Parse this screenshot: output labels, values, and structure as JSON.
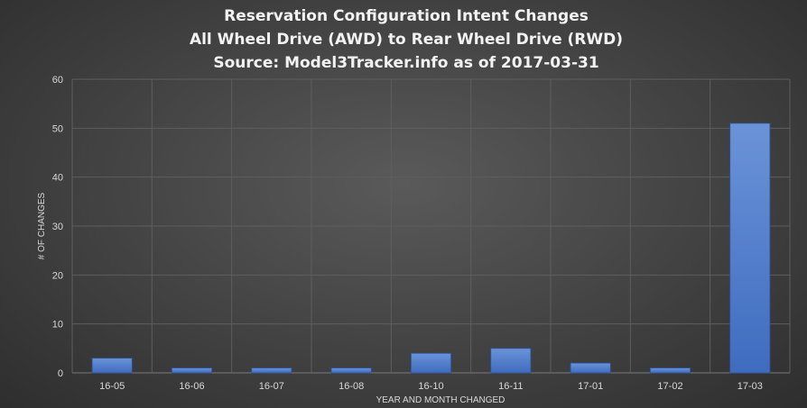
{
  "chart_data": {
    "type": "bar",
    "title": [
      "Reservation  Configuration  Intent  Changes",
      "All Wheel Drive (AWD) to Rear Wheel Drive (RWD)",
      "Source:  Model3Tracker.info    as of 2017-03-31"
    ],
    "categories": [
      "16-05",
      "16-06",
      "16-07",
      "16-08",
      "16-10",
      "16-11",
      "17-01",
      "17-02",
      "17-03"
    ],
    "values": [
      3,
      1,
      1,
      1,
      4,
      5,
      2,
      1,
      51
    ],
    "xlabel": "YEAR AND MONTH CHANGED",
    "ylabel": "# OF CHANGES",
    "ylim": [
      0,
      60
    ],
    "yticks": [
      0,
      10,
      20,
      30,
      40,
      50,
      60
    ],
    "grid": true,
    "legend": "none",
    "colors": {
      "bar_top": "#6a93d8",
      "bar_bottom": "#3f6cc0",
      "bar_stroke": "#2d55a0",
      "grid": "#5e5e5e",
      "text": "#d9d9d9",
      "title": "#f2f2f2"
    }
  }
}
